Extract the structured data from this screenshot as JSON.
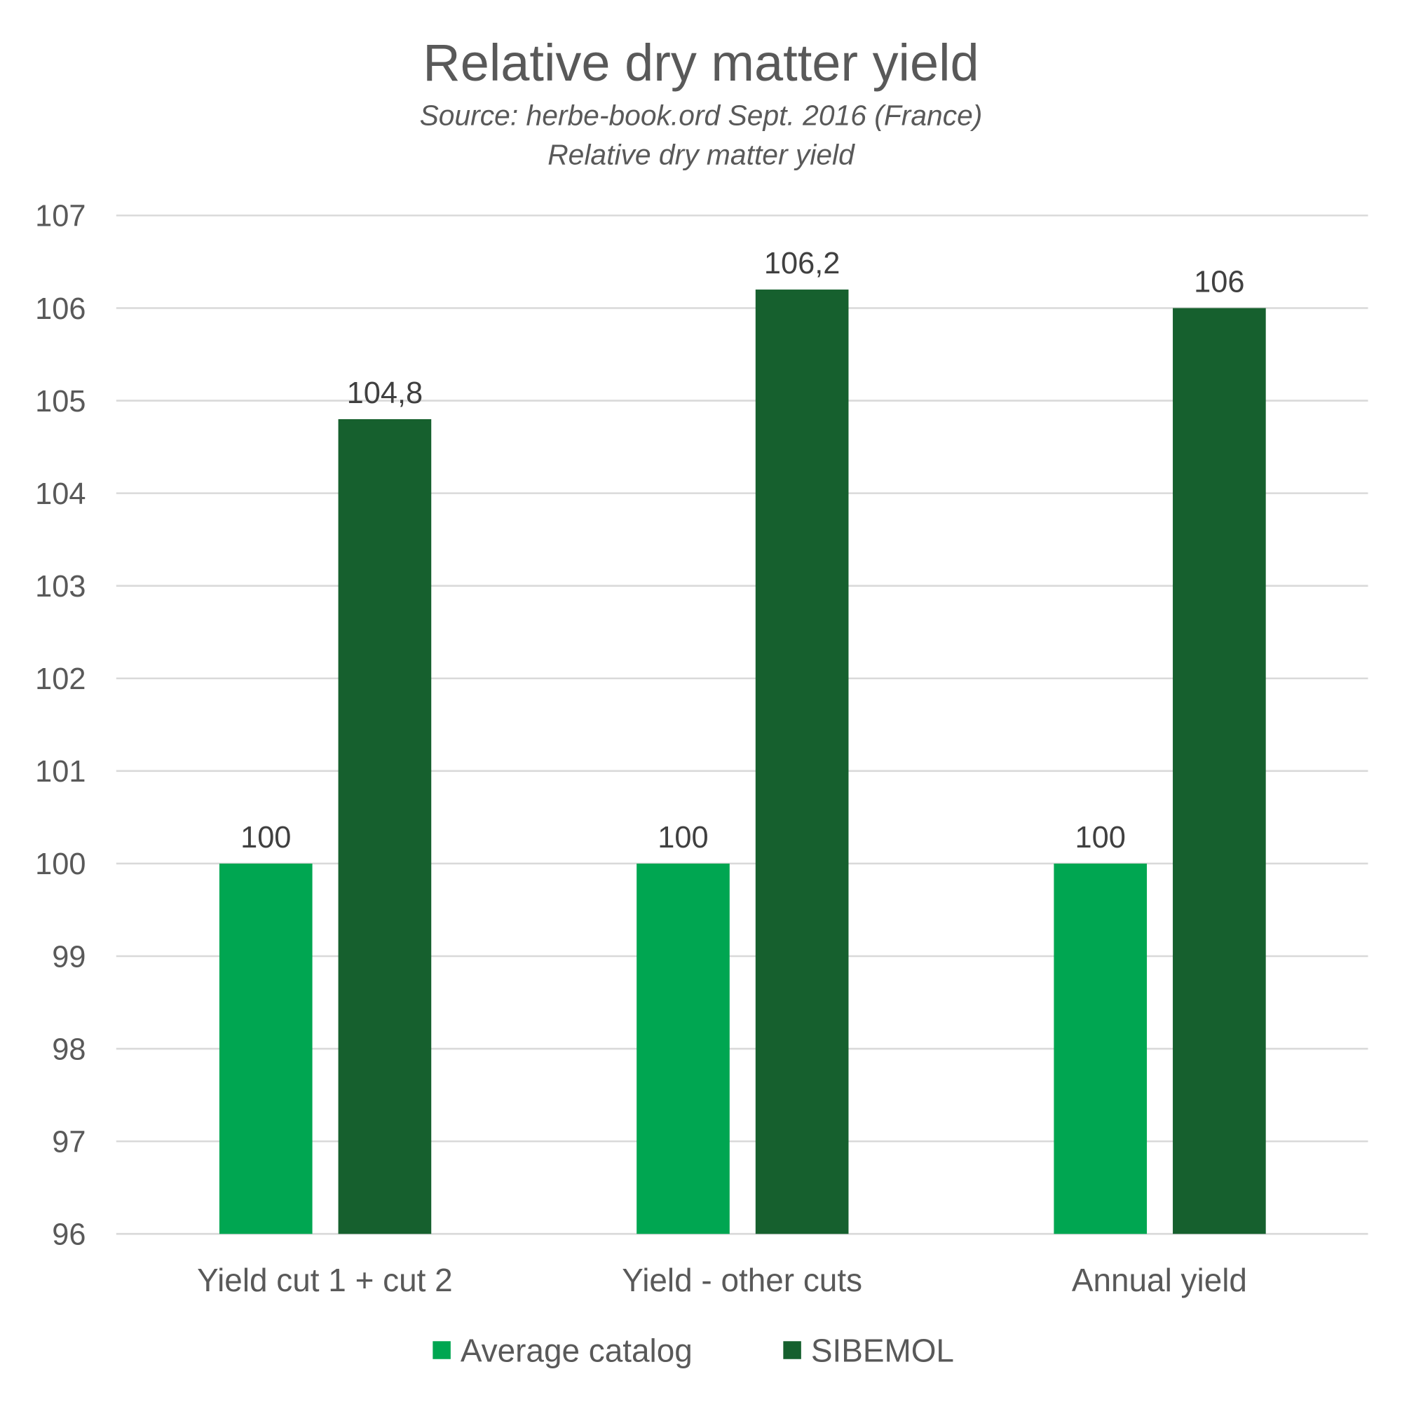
{
  "chart_data": {
    "type": "bar",
    "title": "Relative dry matter yield",
    "subtitle_lines": [
      "Source: herbe-book.ord Sept. 2016 (France)",
      "Relative dry matter yield"
    ],
    "categories": [
      "Yield cut 1 + cut 2",
      "Yield - other cuts",
      "Annual yield"
    ],
    "series": [
      {
        "name": "Average catalog",
        "color": "#00A651",
        "values": [
          100,
          100,
          100
        ],
        "labels": [
          "100",
          "100",
          "100"
        ]
      },
      {
        "name": "SIBEMOL",
        "color": "#16602E",
        "values": [
          104.8,
          106.2,
          106
        ],
        "labels": [
          "104,8",
          "106,2",
          "106"
        ]
      }
    ],
    "xlabel": "",
    "ylabel": "",
    "ylim": [
      96,
      107
    ],
    "yticks": [
      96,
      97,
      98,
      99,
      100,
      101,
      102,
      103,
      104,
      105,
      106,
      107
    ],
    "grid": true,
    "legend_position": "bottom"
  }
}
